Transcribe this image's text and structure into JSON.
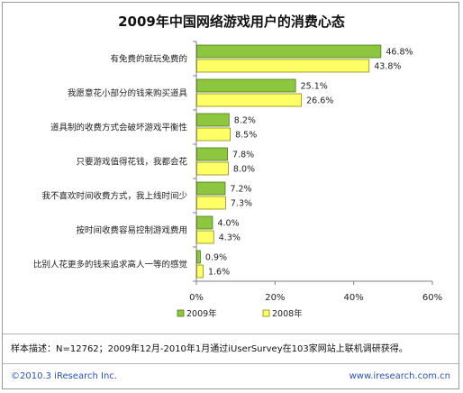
{
  "title": "2009年中国网络游戏用户的消费心态",
  "note": "样本描述：N=12762；2009年12月-2010年1月通过iUserSurvey在103家网站上联机调研获得。",
  "footer": {
    "copyright": "©2010.3 iResearch Inc.",
    "website": "www.iresearch.com.cn"
  },
  "colors": {
    "series_2009": "#8dc63f",
    "series_2009_border": "#4d7a14",
    "series_2008": "#ffff66",
    "series_2008_border": "#8a8a1a"
  },
  "chart_data": {
    "type": "bar",
    "orientation": "horizontal",
    "title": "2009年中国网络游戏用户的消费心态",
    "categories": [
      "有免费的就玩免费的",
      "我愿意花小部分的钱来购买道具",
      "道具制的收费方式会破坏游戏平衡性",
      "只要游戏值得花钱，我都会花",
      "我不喜欢时间收费方式，我上线时间少",
      "按时间收费容易控制游戏费用",
      "比别人花更多的钱来追求高人一等的感觉"
    ],
    "series": [
      {
        "name": "2009年",
        "values": [
          46.8,
          25.1,
          8.2,
          7.8,
          7.2,
          4.0,
          0.9
        ],
        "labels": [
          "46.8%",
          "25.1%",
          "8.2%",
          "7.8%",
          "7.2%",
          "4.0%",
          "0.9%"
        ]
      },
      {
        "name": "2008年",
        "values": [
          43.8,
          26.6,
          8.5,
          8.0,
          7.3,
          4.3,
          1.6
        ],
        "labels": [
          "43.8%",
          "26.6%",
          "8.5%",
          "8.0%",
          "7.3%",
          "4.3%",
          "1.6%"
        ]
      }
    ],
    "xlim": [
      0,
      60
    ],
    "ticks": [
      0,
      20,
      40,
      60
    ],
    "tick_labels": [
      "0%",
      "20%",
      "40%",
      "60%"
    ],
    "grid": false,
    "legend_position": "bottom"
  }
}
